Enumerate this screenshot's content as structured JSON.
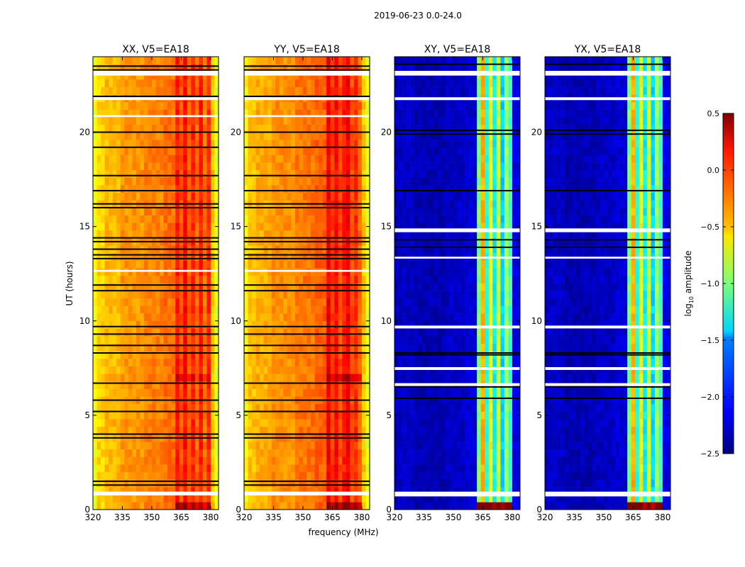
{
  "chart_data": {
    "type": "heatmap",
    "title": "2019-06-23 0.0-24.0",
    "xlabel": "frequency (MHz)",
    "ylabel": "UT (hours)",
    "xlim": [
      320,
      384
    ],
    "ylim": [
      0,
      24
    ],
    "xticks": [
      "320",
      "335",
      "350",
      "365",
      "380"
    ],
    "xtick_values": [
      320,
      335,
      350,
      365,
      380
    ],
    "yticks": [
      "0",
      "5",
      "10",
      "15",
      "20"
    ],
    "ytick_values": [
      0,
      5,
      10,
      15,
      20
    ],
    "colorbar": {
      "label": "log10 amplitude",
      "label_main": "log",
      "label_sub": "10",
      "label_rest": " amplitude",
      "range": [
        -2.5,
        0.5
      ],
      "ticks": [
        "0.5",
        "0.0",
        "−0.5",
        "−1.0",
        "−1.5",
        "−2.0",
        "−2.5"
      ],
      "tick_values": [
        0.5,
        0.0,
        -0.5,
        -1.0,
        -1.5,
        -2.0,
        -2.5
      ],
      "colormap": "jet"
    },
    "panels": [
      {
        "title": "XX, V5=EA18",
        "spectrum": [
          [
            320,
            -0.65
          ],
          [
            322,
            -0.5
          ],
          [
            326,
            -0.42
          ],
          [
            334,
            -0.32
          ],
          [
            346,
            -0.26
          ],
          [
            356,
            -0.2
          ],
          [
            362,
            0.05
          ],
          [
            364,
            -0.12
          ],
          [
            366,
            0.1
          ],
          [
            368,
            -0.15
          ],
          [
            370,
            0.02
          ],
          [
            372,
            -0.2
          ],
          [
            374,
            0.05
          ],
          [
            376,
            -0.22
          ],
          [
            378,
            0.0
          ],
          [
            380,
            -0.45
          ],
          [
            382,
            -0.7
          ]
        ],
        "bright_hours": [
          [
            6.8,
            7.4,
            0.2
          ],
          [
            0.2,
            0.6,
            0.4
          ]
        ],
        "black_lines": [
          23.5,
          23.3,
          21.9,
          20.0,
          19.2,
          17.7,
          16.9,
          16.2,
          16.0,
          14.4,
          14.2,
          13.8,
          13.5,
          13.3,
          11.9,
          11.6,
          9.7,
          9.3,
          8.7,
          8.3,
          6.7,
          5.8,
          5.2,
          4.0,
          3.8,
          1.5,
          1.3
        ],
        "white_bands": [
          [
            23.0,
            23.25
          ],
          [
            21.7,
            21.85
          ],
          [
            20.8,
            20.9
          ],
          [
            12.6,
            12.7
          ],
          [
            0.75,
            0.95
          ]
        ]
      },
      {
        "title": "YY, V5=EA18",
        "spectrum": [
          [
            320,
            -0.6
          ],
          [
            322,
            -0.45
          ],
          [
            326,
            -0.38
          ],
          [
            334,
            -0.3
          ],
          [
            346,
            -0.22
          ],
          [
            356,
            -0.15
          ],
          [
            362,
            0.15
          ],
          [
            364,
            -0.05
          ],
          [
            366,
            0.1
          ],
          [
            368,
            -0.1
          ],
          [
            370,
            0.05
          ],
          [
            372,
            0.15
          ],
          [
            374,
            -0.1
          ],
          [
            376,
            0.0
          ],
          [
            378,
            -0.2
          ],
          [
            380,
            -0.45
          ],
          [
            382,
            -0.7
          ]
        ],
        "bright_hours": [
          [
            6.8,
            7.4,
            0.25
          ],
          [
            0.2,
            0.6,
            0.4
          ]
        ],
        "black_lines": [
          23.5,
          23.3,
          21.9,
          20.0,
          19.2,
          17.7,
          16.9,
          16.2,
          16.0,
          14.4,
          14.2,
          13.8,
          13.5,
          13.3,
          11.9,
          11.6,
          9.7,
          9.3,
          8.7,
          8.3,
          6.7,
          5.8,
          5.2,
          4.0,
          3.8,
          1.5,
          1.3
        ],
        "white_bands": [
          [
            23.0,
            23.25
          ],
          [
            21.7,
            21.85
          ],
          [
            20.8,
            20.9
          ],
          [
            12.6,
            12.7
          ],
          [
            0.75,
            0.95
          ]
        ]
      },
      {
        "title": "XY, V5=EA18",
        "spectrum": [
          [
            320,
            -2.3
          ],
          [
            330,
            -2.35
          ],
          [
            346,
            -2.3
          ],
          [
            356,
            -2.25
          ],
          [
            362,
            -1.0
          ],
          [
            364,
            -0.4
          ],
          [
            366,
            -1.3
          ],
          [
            368,
            -0.6
          ],
          [
            370,
            -1.4
          ],
          [
            372,
            -0.8
          ],
          [
            374,
            -1.5
          ],
          [
            376,
            -0.9
          ],
          [
            378,
            -1.2
          ],
          [
            380,
            -2.2
          ]
        ],
        "bright_hours": [
          [
            0.2,
            0.6,
            1.8
          ]
        ],
        "black_lines": [
          23.6,
          20.1,
          19.9,
          16.9,
          14.3,
          13.9,
          8.3,
          8.2,
          6.5,
          5.9
        ],
        "white_bands": [
          [
            23.0,
            23.25
          ],
          [
            21.7,
            21.85
          ],
          [
            14.7,
            14.9
          ],
          [
            13.3,
            13.4
          ],
          [
            9.6,
            9.75
          ],
          [
            7.4,
            7.55
          ],
          [
            6.55,
            6.7
          ],
          [
            0.7,
            0.95
          ]
        ]
      },
      {
        "title": "YX, V5=EA18",
        "spectrum": [
          [
            320,
            -2.3
          ],
          [
            330,
            -2.35
          ],
          [
            346,
            -2.3
          ],
          [
            356,
            -2.25
          ],
          [
            362,
            -1.0
          ],
          [
            364,
            -0.4
          ],
          [
            366,
            -1.3
          ],
          [
            368,
            -0.6
          ],
          [
            370,
            -1.4
          ],
          [
            372,
            -0.8
          ],
          [
            374,
            -1.5
          ],
          [
            376,
            -0.9
          ],
          [
            378,
            -1.2
          ],
          [
            380,
            -2.2
          ]
        ],
        "bright_hours": [
          [
            0.2,
            0.6,
            1.8
          ]
        ],
        "black_lines": [
          23.6,
          20.1,
          19.9,
          16.9,
          14.3,
          13.9,
          8.3,
          8.2,
          6.5,
          5.9
        ],
        "white_bands": [
          [
            23.0,
            23.25
          ],
          [
            21.7,
            21.85
          ],
          [
            14.7,
            14.9
          ],
          [
            13.3,
            13.4
          ],
          [
            9.6,
            9.75
          ],
          [
            7.4,
            7.55
          ],
          [
            6.55,
            6.7
          ],
          [
            0.7,
            0.95
          ]
        ]
      }
    ]
  }
}
